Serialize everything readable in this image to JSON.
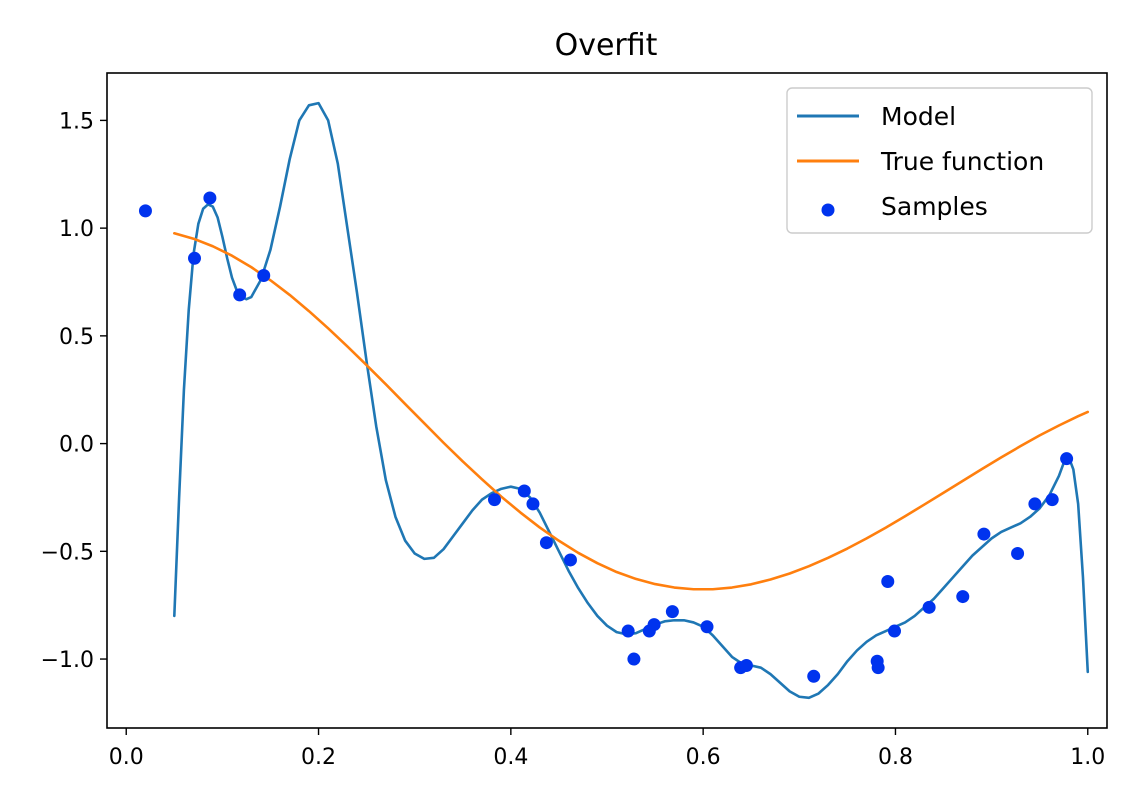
{
  "chart_data": {
    "type": "line",
    "title": "Overfit",
    "xlabel": "",
    "ylabel": "",
    "xlim": [
      -0.02,
      1.02
    ],
    "ylim": [
      -1.32,
      1.72
    ],
    "xticks": [
      0.0,
      0.2,
      0.4,
      0.6,
      0.8,
      1.0
    ],
    "xtick_labels": [
      "0.0",
      "0.2",
      "0.4",
      "0.6",
      "0.8",
      "1.0"
    ],
    "yticks": [
      -1.0,
      -0.5,
      0.0,
      0.5,
      1.0,
      1.5
    ],
    "ytick_labels": [
      "−1.0",
      "−0.5",
      "0.0",
      "0.5",
      "1.0",
      "1.5"
    ],
    "grid": false,
    "legend_position": "upper right",
    "legend": [
      {
        "label": "Model",
        "kind": "line",
        "color": "#1f77b4"
      },
      {
        "label": "True function",
        "kind": "line",
        "color": "#ff7f0e"
      },
      {
        "label": "Samples",
        "kind": "scatter",
        "color": "#0033ee"
      }
    ],
    "series": [
      {
        "name": "Model",
        "kind": "line",
        "color": "#1f77b4",
        "x": [
          0.05,
          0.055,
          0.06,
          0.065,
          0.07,
          0.075,
          0.08,
          0.085,
          0.09,
          0.095,
          0.1,
          0.105,
          0.11,
          0.115,
          0.12,
          0.125,
          0.13,
          0.14,
          0.15,
          0.16,
          0.17,
          0.18,
          0.19,
          0.2,
          0.21,
          0.22,
          0.23,
          0.24,
          0.25,
          0.26,
          0.27,
          0.28,
          0.29,
          0.3,
          0.31,
          0.32,
          0.33,
          0.34,
          0.35,
          0.36,
          0.37,
          0.38,
          0.39,
          0.4,
          0.41,
          0.42,
          0.43,
          0.44,
          0.45,
          0.46,
          0.47,
          0.48,
          0.49,
          0.5,
          0.51,
          0.52,
          0.53,
          0.54,
          0.55,
          0.56,
          0.57,
          0.58,
          0.59,
          0.6,
          0.61,
          0.62,
          0.63,
          0.64,
          0.65,
          0.66,
          0.67,
          0.68,
          0.69,
          0.7,
          0.71,
          0.72,
          0.73,
          0.74,
          0.75,
          0.76,
          0.77,
          0.78,
          0.79,
          0.8,
          0.81,
          0.82,
          0.83,
          0.84,
          0.85,
          0.86,
          0.87,
          0.88,
          0.89,
          0.9,
          0.91,
          0.92,
          0.93,
          0.94,
          0.95,
          0.96,
          0.97,
          0.975,
          0.98,
          0.985,
          0.99,
          0.995,
          1.0
        ],
        "y": [
          -0.8,
          -0.25,
          0.25,
          0.62,
          0.88,
          1.02,
          1.09,
          1.11,
          1.1,
          1.05,
          0.96,
          0.86,
          0.77,
          0.71,
          0.68,
          0.67,
          0.68,
          0.76,
          0.9,
          1.1,
          1.32,
          1.5,
          1.57,
          1.58,
          1.5,
          1.3,
          1.0,
          0.7,
          0.38,
          0.08,
          -0.17,
          -0.34,
          -0.45,
          -0.51,
          -0.535,
          -0.53,
          -0.49,
          -0.43,
          -0.37,
          -0.31,
          -0.26,
          -0.23,
          -0.21,
          -0.2,
          -0.21,
          -0.25,
          -0.32,
          -0.41,
          -0.5,
          -0.59,
          -0.67,
          -0.74,
          -0.8,
          -0.845,
          -0.875,
          -0.885,
          -0.88,
          -0.86,
          -0.84,
          -0.825,
          -0.82,
          -0.82,
          -0.83,
          -0.85,
          -0.89,
          -0.94,
          -0.99,
          -1.02,
          -1.03,
          -1.04,
          -1.07,
          -1.11,
          -1.15,
          -1.175,
          -1.18,
          -1.16,
          -1.12,
          -1.07,
          -1.01,
          -0.96,
          -0.92,
          -0.89,
          -0.87,
          -0.85,
          -0.83,
          -0.8,
          -0.76,
          -0.72,
          -0.67,
          -0.62,
          -0.57,
          -0.52,
          -0.48,
          -0.44,
          -0.41,
          -0.39,
          -0.37,
          -0.34,
          -0.3,
          -0.24,
          -0.15,
          -0.09,
          -0.06,
          -0.12,
          -0.28,
          -0.62,
          -1.06
        ]
      },
      {
        "name": "True function",
        "kind": "line",
        "color": "#ff7f0e",
        "x": [
          0.05,
          0.07,
          0.09,
          0.11,
          0.13,
          0.15,
          0.17,
          0.19,
          0.21,
          0.23,
          0.25,
          0.27,
          0.29,
          0.31,
          0.33,
          0.35,
          0.37,
          0.39,
          0.41,
          0.43,
          0.45,
          0.47,
          0.49,
          0.51,
          0.53,
          0.55,
          0.57,
          0.59,
          0.61,
          0.63,
          0.65,
          0.67,
          0.69,
          0.71,
          0.73,
          0.75,
          0.77,
          0.79,
          0.81,
          0.83,
          0.85,
          0.87,
          0.89,
          0.91,
          0.93,
          0.95,
          0.97,
          0.99,
          1.0
        ],
        "y": [
          0.976,
          0.951,
          0.916,
          0.872,
          0.819,
          0.758,
          0.69,
          0.615,
          0.535,
          0.451,
          0.364,
          0.275,
          0.184,
          0.094,
          0.004,
          -0.083,
          -0.166,
          -0.246,
          -0.32,
          -0.389,
          -0.451,
          -0.507,
          -0.555,
          -0.596,
          -0.628,
          -0.652,
          -0.668,
          -0.676,
          -0.676,
          -0.668,
          -0.653,
          -0.631,
          -0.603,
          -0.569,
          -0.53,
          -0.487,
          -0.44,
          -0.39,
          -0.337,
          -0.283,
          -0.228,
          -0.173,
          -0.118,
          -0.064,
          -0.012,
          0.038,
          0.084,
          0.127,
          0.147
        ]
      },
      {
        "name": "Samples",
        "kind": "scatter",
        "color": "#0033ee",
        "x": [
          0.02,
          0.071,
          0.087,
          0.118,
          0.143,
          0.383,
          0.414,
          0.423,
          0.437,
          0.462,
          0.522,
          0.528,
          0.544,
          0.549,
          0.568,
          0.604,
          0.639,
          0.645,
          0.715,
          0.781,
          0.782,
          0.792,
          0.799,
          0.835,
          0.87,
          0.892,
          0.927,
          0.945,
          0.963,
          0.978
        ],
        "y": [
          1.08,
          0.86,
          1.14,
          0.69,
          0.78,
          -0.26,
          -0.22,
          -0.28,
          -0.46,
          -0.54,
          -0.87,
          -1.0,
          -0.87,
          -0.84,
          -0.78,
          -0.85,
          -1.04,
          -1.03,
          -1.08,
          -1.01,
          -1.04,
          -0.64,
          -0.87,
          -0.76,
          -0.71,
          -0.42,
          -0.51,
          -0.28,
          -0.26,
          -0.07
        ]
      }
    ]
  }
}
